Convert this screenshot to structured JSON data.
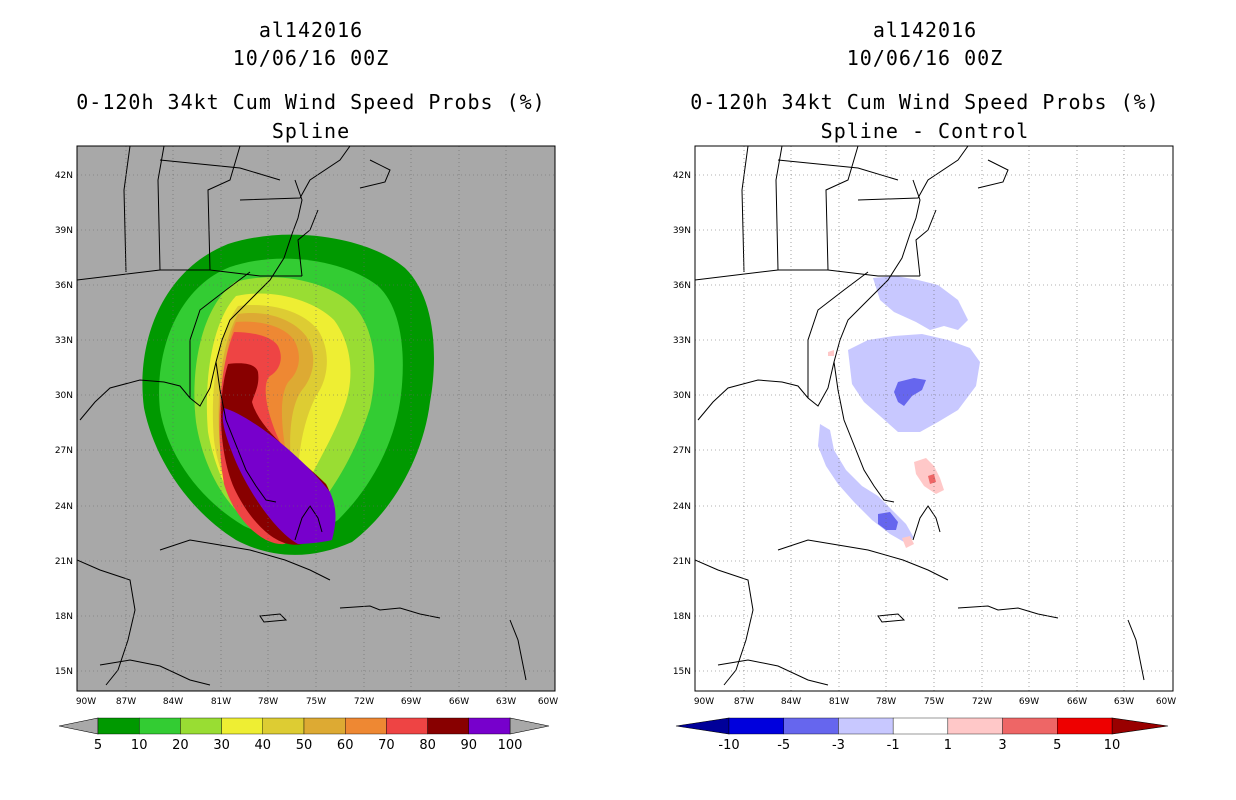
{
  "left": {
    "storm_id": "al142016",
    "datetime": "10/06/16 00Z",
    "product": "0-120h 34kt Cum Wind Speed Probs (%)",
    "subtitle": "Spline",
    "lat_labels": [
      "42N",
      "39N",
      "36N",
      "33N",
      "30N",
      "27N",
      "24N",
      "21N",
      "18N",
      "15N"
    ],
    "lon_labels": [
      "90W",
      "87W",
      "84W",
      "81W",
      "78W",
      "75W",
      "72W",
      "69W",
      "66W",
      "63W",
      "60W"
    ],
    "colorbar": {
      "labels": [
        "5",
        "10",
        "20",
        "30",
        "40",
        "50",
        "60",
        "70",
        "80",
        "90",
        "100"
      ],
      "colors": [
        "#009900",
        "#33cc33",
        "#99dd33",
        "#eeee33",
        "#ddcc33",
        "#ddaa33",
        "#ee8833",
        "#ee4444",
        "#880000",
        "#7700cc"
      ]
    }
  },
  "right": {
    "storm_id": "al142016",
    "datetime": "10/06/16 00Z",
    "product": "0-120h 34kt Cum Wind Speed Probs (%)",
    "subtitle": "Spline - Control",
    "lat_labels": [
      "42N",
      "39N",
      "36N",
      "33N",
      "30N",
      "27N",
      "24N",
      "21N",
      "18N",
      "15N"
    ],
    "lon_labels": [
      "90W",
      "87W",
      "84W",
      "81W",
      "78W",
      "75W",
      "72W",
      "69W",
      "66W",
      "63W",
      "60W"
    ],
    "colorbar": {
      "labels": [
        "-10",
        "-5",
        "-3",
        "-1",
        "1",
        "3",
        "5",
        "10"
      ],
      "colors": [
        "#0000dd",
        "#6666ee",
        "#c8c8ff",
        "#ffffff",
        "#ffc8c8",
        "#ee6666",
        "#ee0000"
      ],
      "end_colors": [
        "#000099",
        "#990000"
      ]
    }
  }
}
